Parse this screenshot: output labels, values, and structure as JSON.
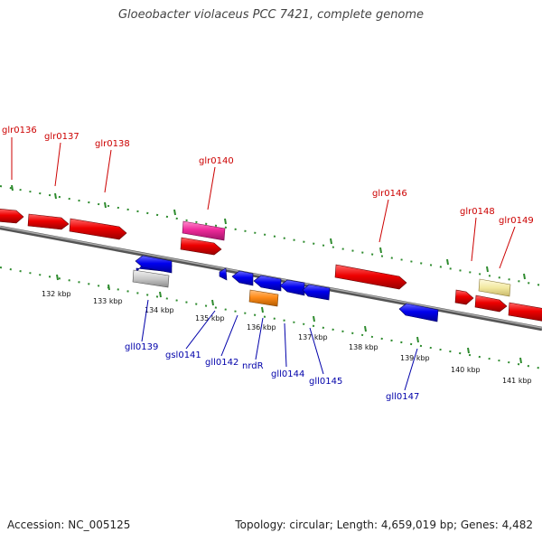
{
  "title": "Gloeobacter violaceus PCC 7421, complete genome",
  "footer": {
    "accession": "Accession: NC_005125",
    "summary": "Topology: circular; Length: 4,659,019 bp; Genes: 4,482"
  },
  "colors": {
    "forward_gene": "#ee0000",
    "reverse_gene": "#0000ee",
    "forward_label": "#cc0000",
    "reverse_label": "#0000aa",
    "tick": "#2e8b2e",
    "backbone": "#888888",
    "pink_gene": "#ee2a9a",
    "orange_gene": "#ff8c1a",
    "pale_yellow_gene": "#f2e8a0",
    "gray_gene": "#c8c8c8"
  },
  "tick_labels": [
    "132 kbp",
    "133 kbp",
    "134 kbp",
    "135 kbp",
    "136 kbp",
    "137 kbp",
    "138 kbp",
    "139 kbp",
    "140 kbp",
    "141 kbp"
  ],
  "forward_genes": [
    "glr0136",
    "glr0137",
    "glr0138",
    "glr0140",
    "glr0146",
    "glr0148",
    "glr0149"
  ],
  "reverse_genes": [
    "gll0139",
    "gsl0141",
    "gll0142",
    "nrdR",
    "gll0144",
    "gll0145",
    "gll0147"
  ]
}
